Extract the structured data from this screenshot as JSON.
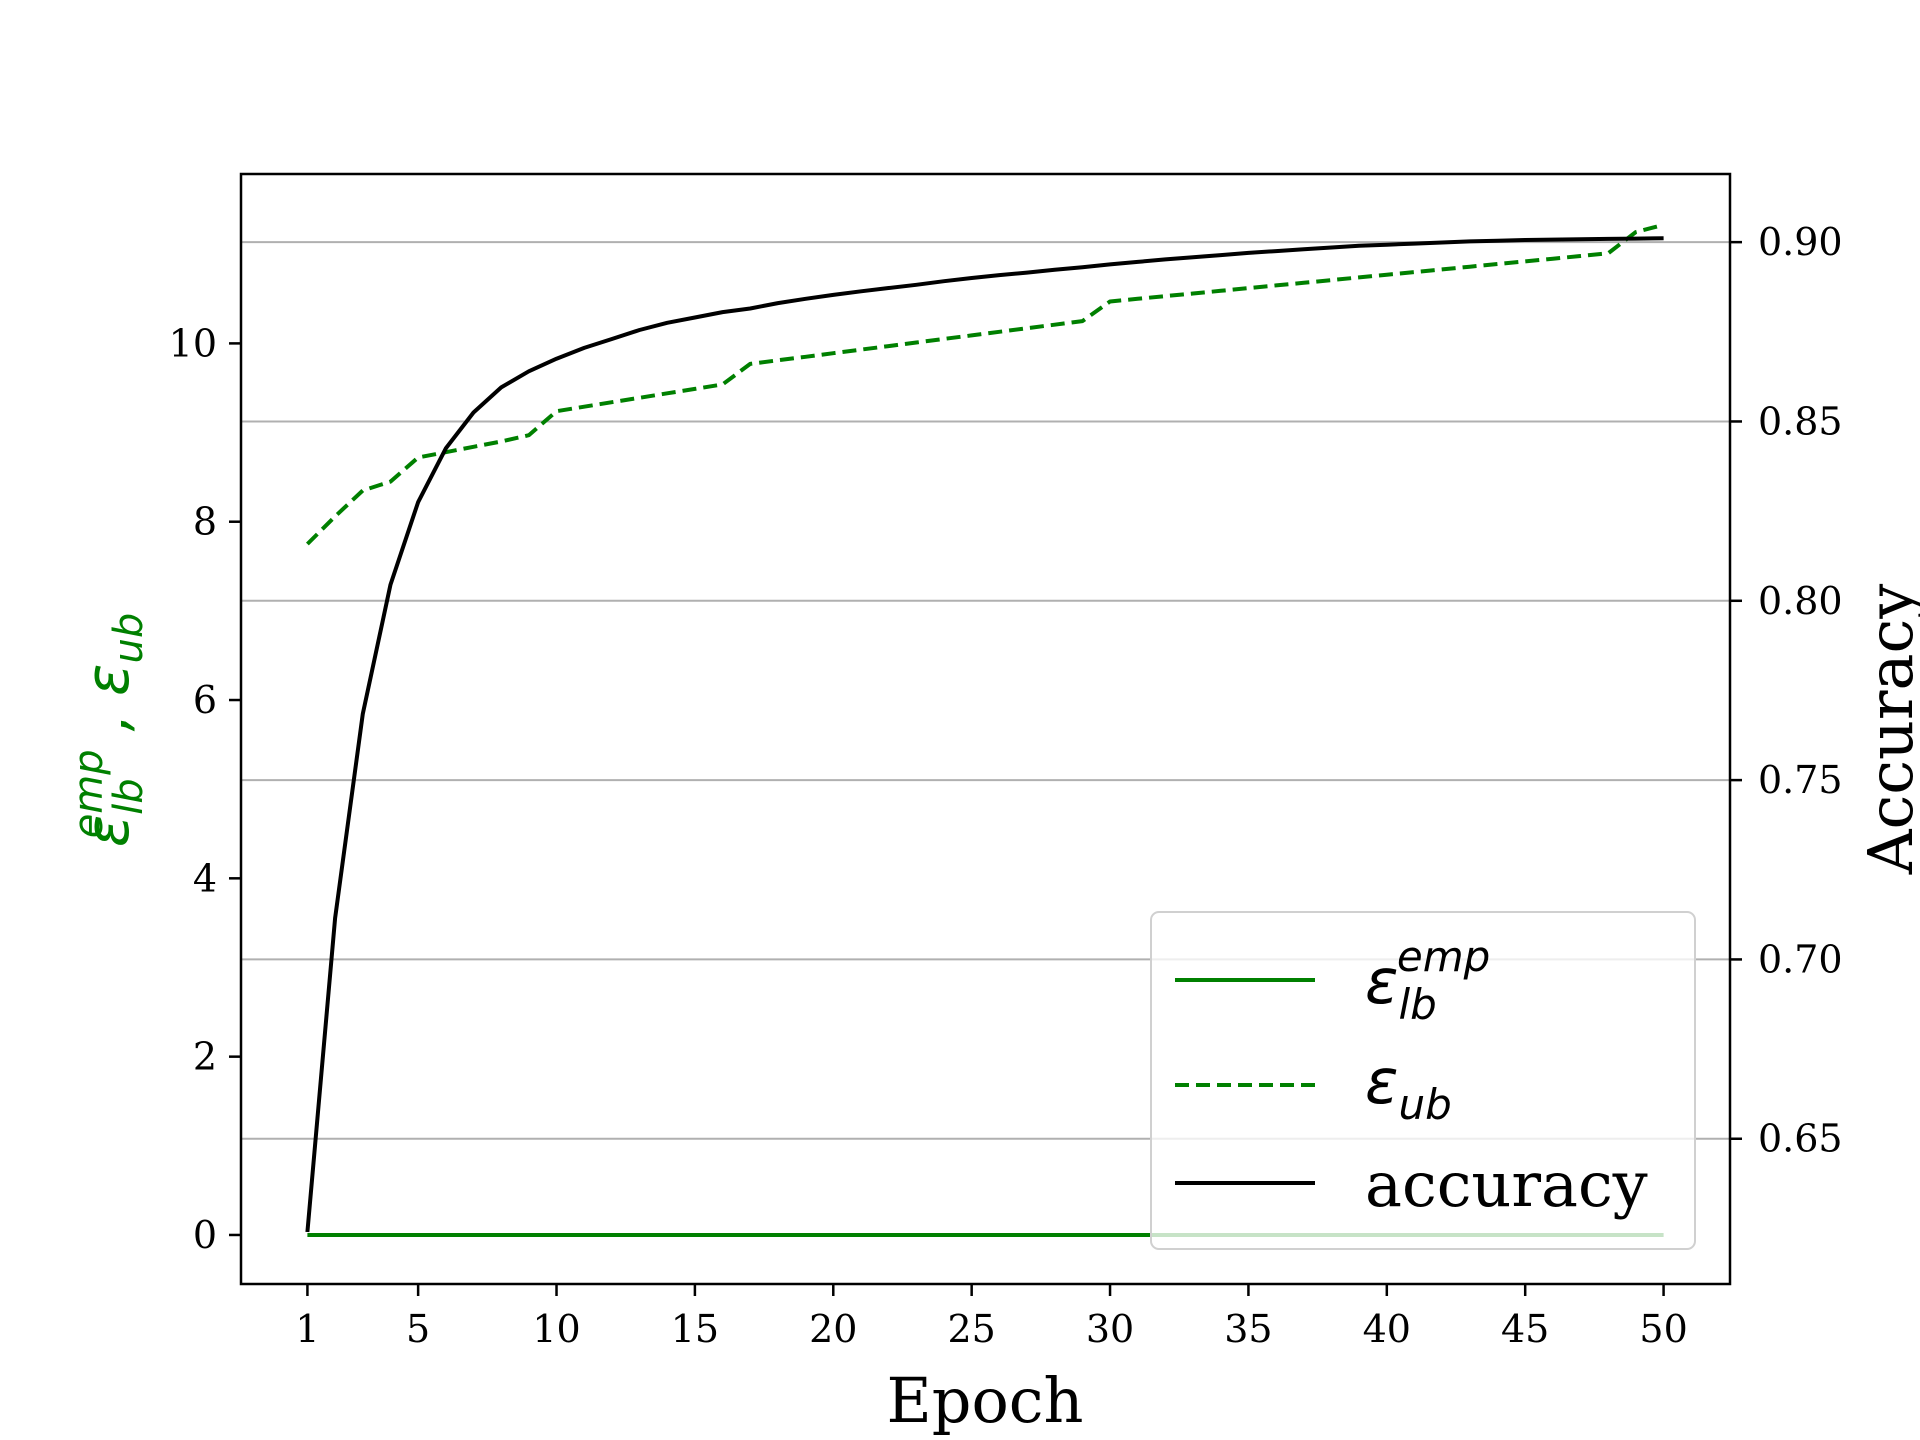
{
  "chart_data": {
    "type": "line",
    "xlabel": "Epoch",
    "ylabel_left": {
      "base": "ε",
      "sub": "lb",
      "sup": "emp",
      "sep": " ,  ",
      "base2": "ε",
      "sub2": "ub"
    },
    "ylabel_right": "Accuracy",
    "x_ticks": [
      1,
      5,
      10,
      15,
      20,
      25,
      30,
      35,
      40,
      45,
      50
    ],
    "y_left_ticks": [
      0,
      2,
      4,
      6,
      8,
      10
    ],
    "y_right_ticks": [
      "0.65",
      "0.70",
      "0.75",
      "0.80",
      "0.85",
      "0.90"
    ],
    "xlim": [
      -1.4,
      52.4
    ],
    "ylim_left": [
      -0.55,
      11.9
    ],
    "ylim_right": [
      0.6095,
      0.919
    ],
    "grid": "right-axis horizontal",
    "legend_position": "lower right",
    "colors": {
      "eps": "#008000",
      "accuracy": "#000000",
      "grid": "#b0b0b0"
    },
    "legend": [
      {
        "label": "ε",
        "sub": "lb",
        "sup": "emp",
        "style": "solid",
        "color": "#008000"
      },
      {
        "label": "ε",
        "sub": "ub",
        "style": "dashed",
        "color": "#008000"
      },
      {
        "label": "accuracy",
        "style": "solid",
        "color": "#000000"
      }
    ],
    "series": [
      {
        "name": "ε_lb^emp",
        "axis": "left",
        "style": "solid",
        "color": "#008000",
        "x": [
          1,
          50
        ],
        "y": [
          0,
          0
        ]
      },
      {
        "name": "ε_ub",
        "axis": "left",
        "style": "dashed",
        "color": "#008000",
        "x": [
          1,
          2,
          3,
          4,
          5,
          6,
          7,
          8,
          9,
          10,
          11,
          12,
          13,
          14,
          15,
          16,
          17,
          18,
          19,
          20,
          21,
          22,
          23,
          24,
          25,
          26,
          27,
          28,
          29,
          30,
          31,
          32,
          33,
          34,
          35,
          36,
          37,
          38,
          39,
          40,
          41,
          42,
          43,
          44,
          45,
          46,
          47,
          48,
          49,
          50
        ],
        "y": [
          7.75,
          8.06,
          8.35,
          8.45,
          8.72,
          8.78,
          8.84,
          8.9,
          8.97,
          9.24,
          9.29,
          9.34,
          9.39,
          9.44,
          9.49,
          9.54,
          9.77,
          9.81,
          9.85,
          9.89,
          9.93,
          9.97,
          10.01,
          10.05,
          10.09,
          10.13,
          10.17,
          10.21,
          10.25,
          10.47,
          10.5,
          10.53,
          10.56,
          10.59,
          10.62,
          10.65,
          10.68,
          10.71,
          10.74,
          10.77,
          10.8,
          10.83,
          10.86,
          10.89,
          10.92,
          10.95,
          10.98,
          11.01,
          11.25,
          11.33
        ]
      },
      {
        "name": "accuracy",
        "axis": "right",
        "style": "solid",
        "color": "#000000",
        "x": [
          1,
          2,
          3,
          4,
          5,
          6,
          7,
          8,
          9,
          10,
          11,
          12,
          13,
          14,
          15,
          16,
          17,
          18,
          19,
          20,
          21,
          22,
          23,
          24,
          25,
          26,
          27,
          28,
          29,
          30,
          31,
          32,
          33,
          34,
          35,
          36,
          37,
          38,
          39,
          40,
          41,
          42,
          43,
          44,
          45,
          46,
          47,
          48,
          49,
          50
        ],
        "y": [
          0.624,
          0.7115,
          0.7685,
          0.8045,
          0.8275,
          0.8425,
          0.8525,
          0.8595,
          0.864,
          0.8675,
          0.8705,
          0.873,
          0.8755,
          0.8775,
          0.879,
          0.8805,
          0.8815,
          0.883,
          0.8842,
          0.8853,
          0.8863,
          0.8872,
          0.8881,
          0.8891,
          0.89,
          0.8908,
          0.8915,
          0.8923,
          0.893,
          0.8938,
          0.8945,
          0.8952,
          0.8958,
          0.8964,
          0.897,
          0.8975,
          0.898,
          0.8985,
          0.899,
          0.8993,
          0.8996,
          0.8999,
          0.9002,
          0.9004,
          0.9006,
          0.9007,
          0.9008,
          0.9009,
          0.901,
          0.9011
        ]
      }
    ]
  }
}
